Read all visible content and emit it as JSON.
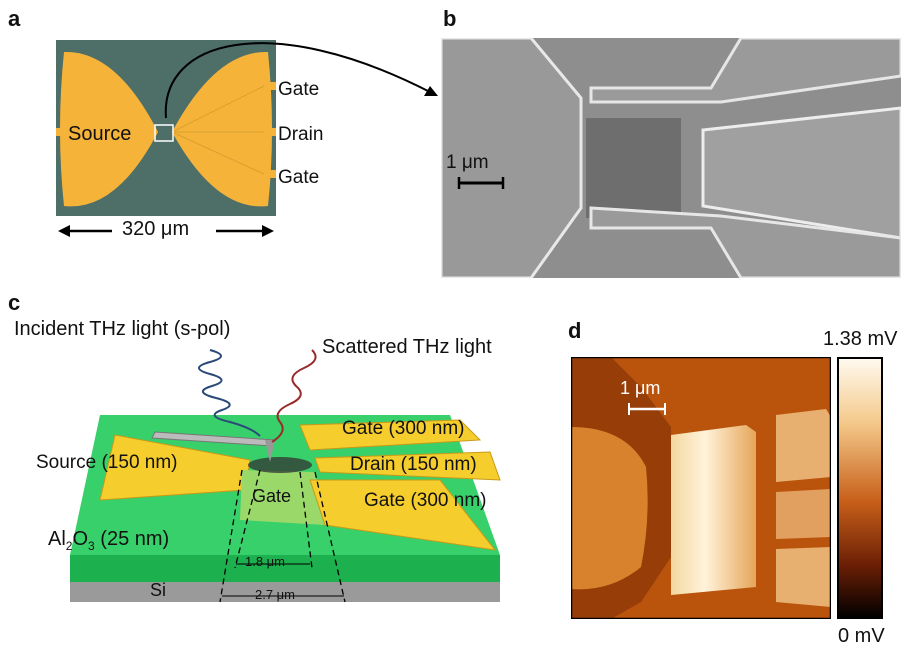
{
  "panels": {
    "a": {
      "letter": "a",
      "labels": {
        "source": "Source",
        "gate_top": "Gate",
        "drain": "Drain",
        "gate_bottom": "Gate"
      },
      "scale": "320 μm"
    },
    "b": {
      "letter": "b",
      "scale": "1 μm"
    },
    "c": {
      "letter": "c",
      "incident": "Incident THz light (s-pol)",
      "scattered": "Scattered THz light",
      "gate_top": "Gate (300 nm)",
      "source": "Source (150 nm)",
      "drain": "Drain (150 nm)",
      "gate_center": "Gate",
      "gate_bottom": "Gate (300 nm)",
      "al2o3_prefix": "Al",
      "al2o3_sub1": "2",
      "al2o3_mid": "O",
      "al2o3_sub2": "3",
      "al2o3_suffix": " (25 nm)",
      "si": "Si",
      "dim_inner": "1.8 μm",
      "dim_outer": "2.7 μm"
    },
    "d": {
      "letter": "d",
      "scale": "1 μm",
      "colorbar_max": "1.38 mV",
      "colorbar_min": "0 mV"
    }
  },
  "colors": {
    "gold": "#F5B33A",
    "substrate_a": "#4E6E68",
    "green": "#2FC65A",
    "si_gray": "#9A9A9A",
    "sem_gray": "#8C8C8C",
    "incident_wave": "#2B4A7A",
    "scattered_wave": "#9A2A2A"
  }
}
